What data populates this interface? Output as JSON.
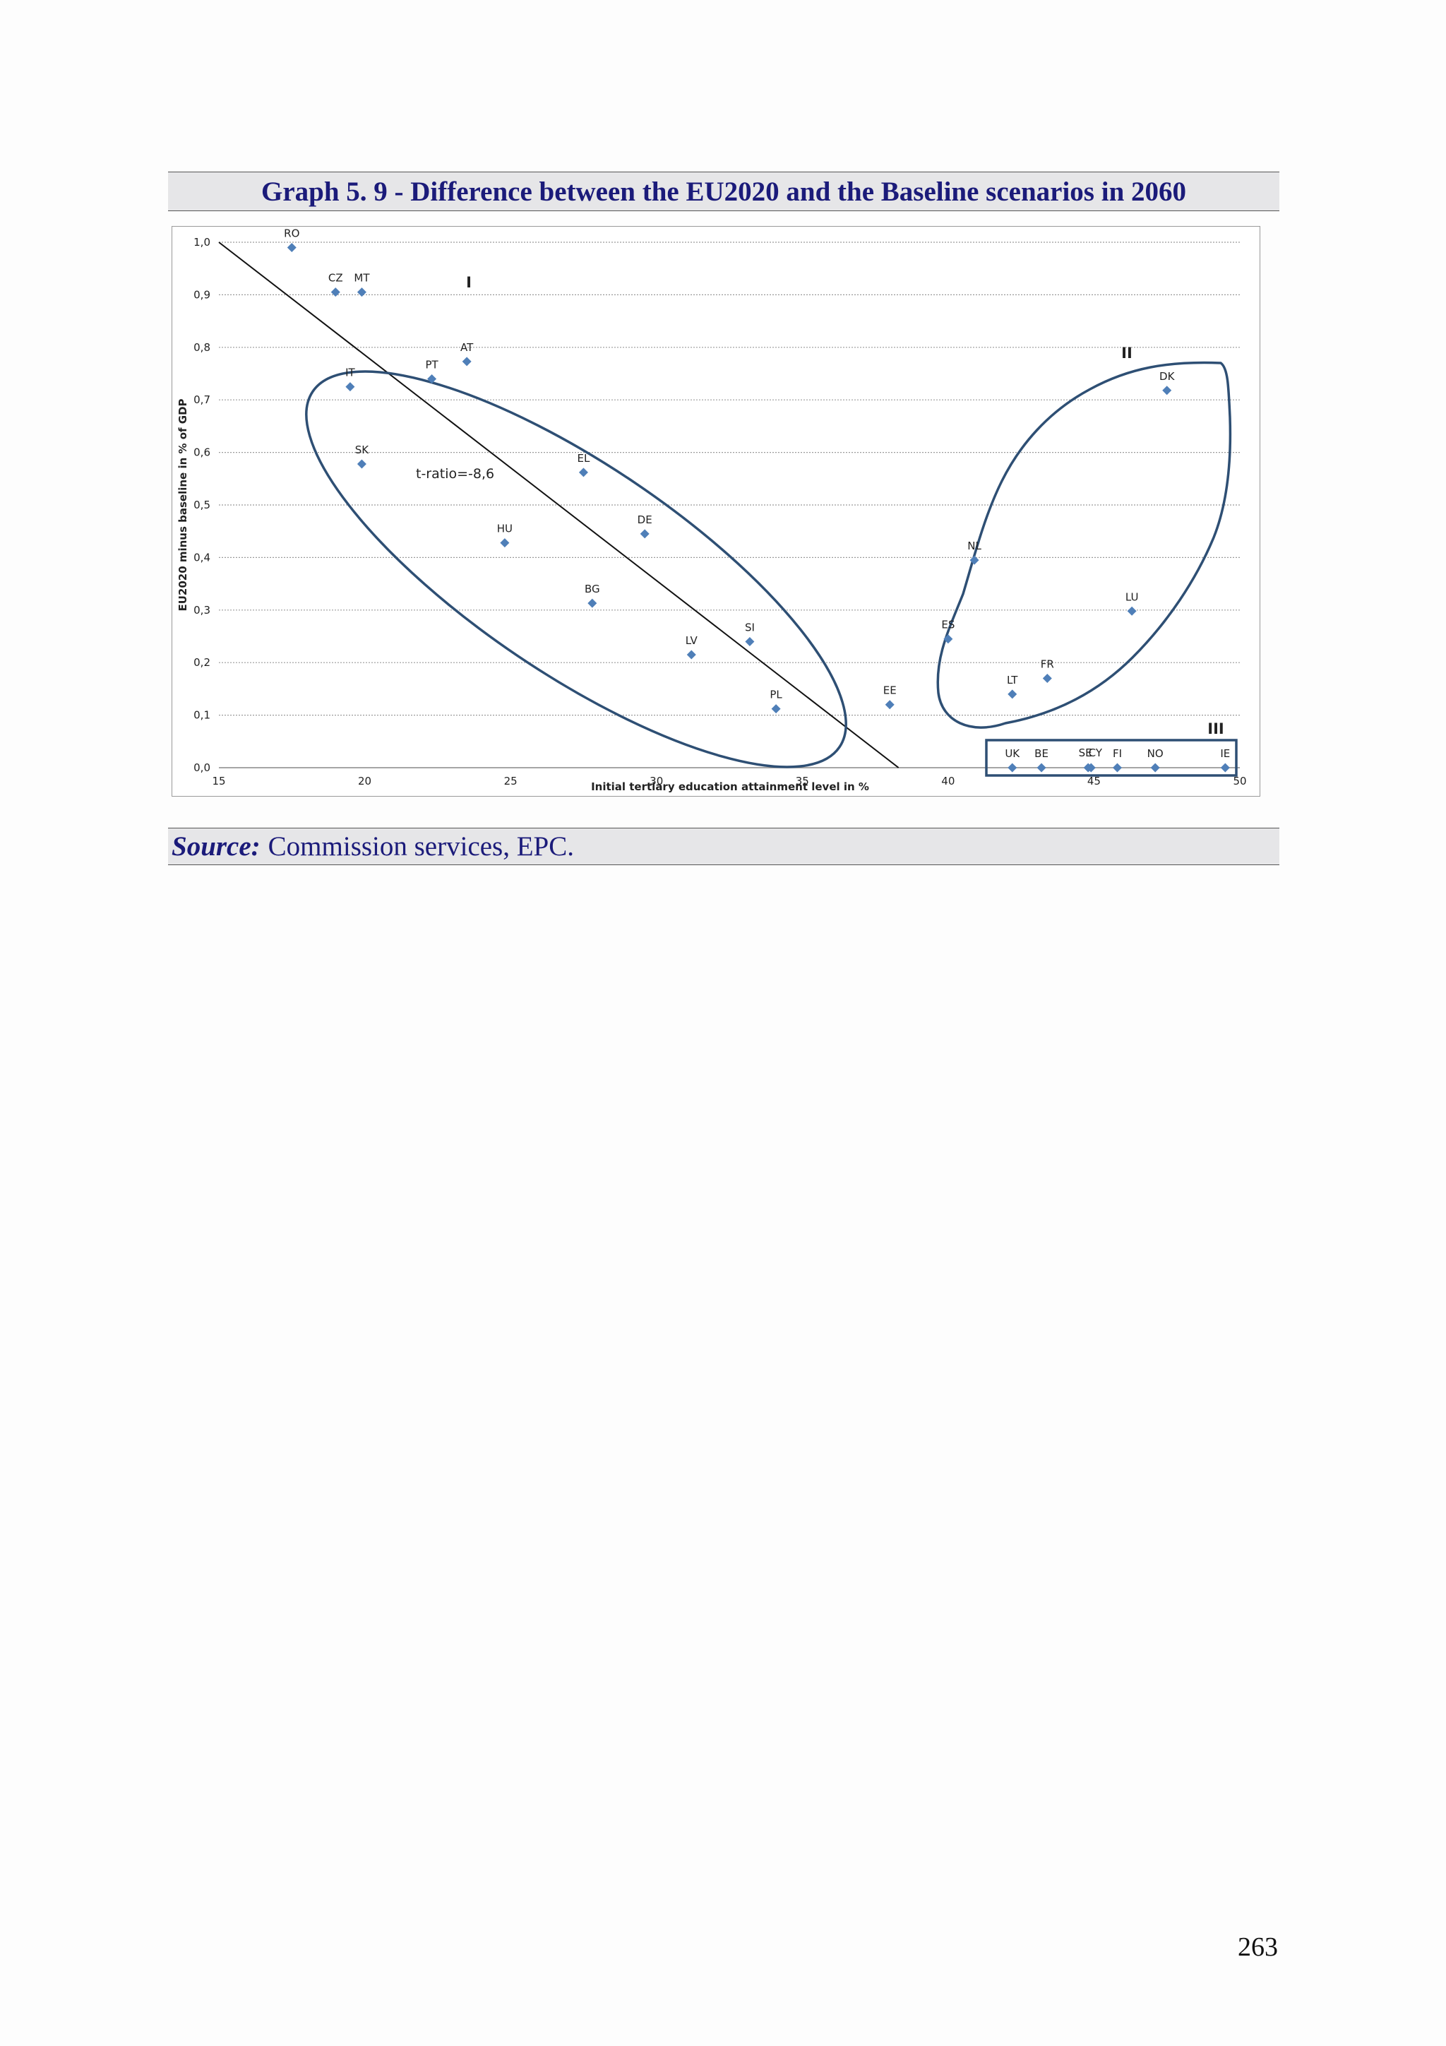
{
  "title": "Graph 5. 9 - Difference between the EU2020 and the Baseline scenarios in 2060",
  "source": {
    "label": "Source:",
    "text": "Commission services, EPC."
  },
  "page_number": "263",
  "chart_data": {
    "type": "scatter",
    "xlabel": "Initial tertiary education attainment level in %",
    "ylabel": "EU2020 minus baseline in % of GDP",
    "xlim": [
      15,
      50
    ],
    "ylim": [
      0,
      1
    ],
    "x_ticks": [
      "15",
      "20",
      "25",
      "30",
      "35",
      "40",
      "45",
      "50"
    ],
    "y_ticks": [
      "0,0",
      "0,1",
      "0,2",
      "0,3",
      "0,4",
      "0,5",
      "0,6",
      "0,7",
      "0,8",
      "0,9",
      "1,0"
    ],
    "grid": "horizontal dotted",
    "annotation": "t-ratio=-8,6",
    "regression_line": {
      "x": [
        15,
        38.3
      ],
      "y": [
        1.0,
        0.0
      ]
    },
    "marker_color": "#4f7fb8",
    "group_outline_color": "#2e4f74",
    "groups": [
      {
        "label": "I"
      },
      {
        "label": "II"
      },
      {
        "label": "III"
      }
    ],
    "points": [
      {
        "label": "RO",
        "x": 17.5,
        "y": 0.99
      },
      {
        "label": "CZ",
        "x": 19.0,
        "y": 0.905
      },
      {
        "label": "MT",
        "x": 19.9,
        "y": 0.905
      },
      {
        "label": "IT",
        "x": 19.5,
        "y": 0.725
      },
      {
        "label": "SK",
        "x": 19.9,
        "y": 0.578
      },
      {
        "label": "PT",
        "x": 22.3,
        "y": 0.74
      },
      {
        "label": "AT",
        "x": 23.5,
        "y": 0.773
      },
      {
        "label": "HU",
        "x": 24.8,
        "y": 0.428
      },
      {
        "label": "EL",
        "x": 27.5,
        "y": 0.562
      },
      {
        "label": "BG",
        "x": 27.8,
        "y": 0.313
      },
      {
        "label": "DE",
        "x": 29.6,
        "y": 0.445
      },
      {
        "label": "LV",
        "x": 31.2,
        "y": 0.215
      },
      {
        "label": "SI",
        "x": 33.2,
        "y": 0.24
      },
      {
        "label": "PL",
        "x": 34.1,
        "y": 0.112
      },
      {
        "label": "EE",
        "x": 38.0,
        "y": 0.12
      },
      {
        "label": "ES",
        "x": 40.0,
        "y": 0.245
      },
      {
        "label": "NL",
        "x": 40.9,
        "y": 0.395
      },
      {
        "label": "LT",
        "x": 42.2,
        "y": 0.14
      },
      {
        "label": "FR",
        "x": 43.4,
        "y": 0.17
      },
      {
        "label": "LU",
        "x": 46.3,
        "y": 0.298
      },
      {
        "label": "DK",
        "x": 47.5,
        "y": 0.718
      },
      {
        "label": "UK",
        "x": 42.2,
        "y": 0.0
      },
      {
        "label": "BE",
        "x": 43.2,
        "y": 0.0
      },
      {
        "label": "SE",
        "x": 44.8,
        "y": 0.0
      },
      {
        "label": "CY",
        "x": 44.9,
        "y": 0.0
      },
      {
        "label": "FI",
        "x": 45.8,
        "y": 0.0
      },
      {
        "label": "NO",
        "x": 47.1,
        "y": 0.0
      },
      {
        "label": "IE",
        "x": 49.5,
        "y": 0.0
      }
    ]
  }
}
